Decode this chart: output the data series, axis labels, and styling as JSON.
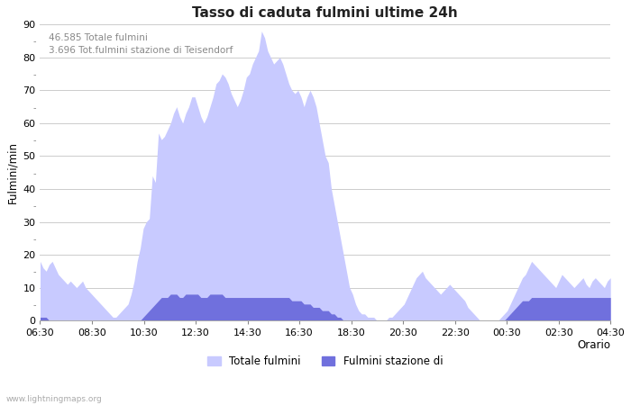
{
  "title": "Tasso di caduta fulmini ultime 24h",
  "xlabel": "Orario",
  "ylabel": "Fulmini/min",
  "annotation_line1": "46.585 Totale fulmini",
  "annotation_line2": "3.696 Tot.fulmini stazione di Teisendorf",
  "legend_label1": "Totale fulmini",
  "legend_label2": "Fulmini stazione di",
  "color_total": "#c8caff",
  "color_station": "#7070dd",
  "ylim": [
    0,
    90
  ],
  "yticks_major": [
    0,
    10,
    20,
    30,
    40,
    50,
    60,
    70,
    80,
    90
  ],
  "yticks_minor_labels": [
    5,
    15,
    25,
    35,
    45,
    55,
    65,
    75,
    85
  ],
  "background_color": "#ffffff",
  "grid_color": "#cccccc",
  "watermark": "www.lightningmaps.org",
  "xtick_labels": [
    "06:30",
    "08:30",
    "10:30",
    "12:30",
    "14:30",
    "16:30",
    "18:30",
    "20:30",
    "22:30",
    "00:30",
    "02:30",
    "04:30"
  ],
  "total_values": [
    18,
    16,
    15,
    17,
    18,
    16,
    14,
    13,
    12,
    11,
    12,
    11,
    10,
    11,
    12,
    10,
    9,
    8,
    7,
    6,
    5,
    4,
    3,
    2,
    1,
    1,
    2,
    3,
    4,
    5,
    8,
    12,
    18,
    22,
    28,
    30,
    31,
    44,
    42,
    57,
    55,
    56,
    58,
    60,
    63,
    65,
    62,
    60,
    63,
    65,
    68,
    68,
    65,
    62,
    60,
    62,
    65,
    68,
    72,
    73,
    75,
    74,
    72,
    69,
    67,
    65,
    67,
    70,
    74,
    75,
    78,
    80,
    82,
    88,
    86,
    82,
    80,
    78,
    79,
    80,
    78,
    75,
    72,
    70,
    69,
    70,
    68,
    65,
    68,
    70,
    68,
    65,
    60,
    55,
    50,
    48,
    40,
    35,
    30,
    25,
    20,
    15,
    10,
    8,
    5,
    3,
    2,
    2,
    1,
    1,
    1,
    0,
    0,
    0,
    0,
    1,
    1,
    2,
    3,
    4,
    5,
    7,
    9,
    11,
    13,
    14,
    15,
    13,
    12,
    11,
    10,
    9,
    8,
    9,
    10,
    11,
    10,
    9,
    8,
    7,
    6,
    4,
    3,
    2,
    1,
    0,
    0,
    0,
    0,
    0,
    0,
    0,
    1,
    2,
    3,
    5,
    7,
    9,
    11,
    13,
    14,
    16,
    18,
    17,
    16,
    15,
    14,
    13,
    12,
    11,
    10,
    12,
    14,
    13,
    12,
    11,
    10,
    11,
    12,
    13,
    11,
    10,
    12,
    13,
    12,
    11,
    10,
    12,
    13
  ],
  "station_values": [
    1,
    1,
    1,
    0,
    0,
    0,
    0,
    0,
    0,
    0,
    0,
    0,
    0,
    0,
    0,
    0,
    0,
    0,
    0,
    0,
    0,
    0,
    0,
    0,
    0,
    0,
    0,
    0,
    0,
    0,
    0,
    0,
    0,
    0,
    1,
    2,
    3,
    4,
    5,
    6,
    7,
    7,
    7,
    8,
    8,
    8,
    7,
    7,
    8,
    8,
    8,
    8,
    8,
    7,
    7,
    7,
    8,
    8,
    8,
    8,
    8,
    7,
    7,
    7,
    7,
    7,
    7,
    7,
    7,
    7,
    7,
    7,
    7,
    7,
    7,
    7,
    7,
    7,
    7,
    7,
    7,
    7,
    7,
    6,
    6,
    6,
    6,
    5,
    5,
    5,
    4,
    4,
    4,
    3,
    3,
    3,
    2,
    2,
    1,
    1,
    0,
    0,
    0,
    0,
    0,
    0,
    0,
    0,
    0,
    0,
    0,
    0,
    0,
    0,
    0,
    0,
    0,
    0,
    0,
    0,
    0,
    0,
    0,
    0,
    0,
    0,
    0,
    0,
    0,
    0,
    0,
    0,
    0,
    0,
    0,
    0,
    0,
    0,
    0,
    0,
    0,
    0,
    0,
    0,
    0,
    0,
    0,
    0,
    0,
    0,
    0,
    0,
    0,
    0,
    1,
    2,
    3,
    4,
    5,
    6,
    6,
    6,
    7,
    7,
    7,
    7,
    7,
    7,
    7,
    7,
    7,
    7,
    7,
    7,
    7,
    7,
    7,
    7,
    7,
    7,
    7,
    7,
    7,
    7,
    7,
    7,
    7,
    7,
    7
  ]
}
